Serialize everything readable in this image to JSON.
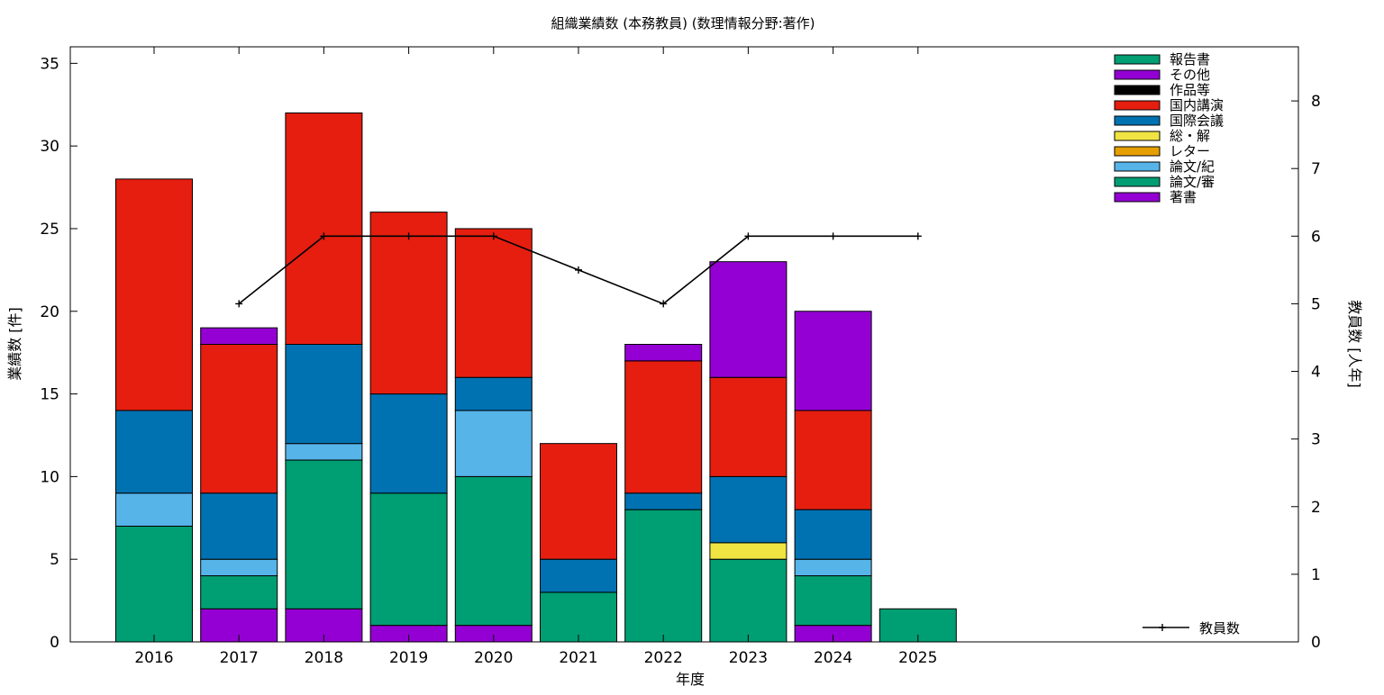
{
  "chart_data": {
    "type": "bar",
    "stacked": true,
    "title": "組織業績数 (本務教員) (数理情報分野:著作)",
    "xlabel": "年度",
    "ylabel": "業績数 [件]",
    "y2label": "教員数 [人年]",
    "categories": [
      "2016",
      "2017",
      "2018",
      "2019",
      "2020",
      "2021",
      "2022",
      "2023",
      "2024",
      "2025"
    ],
    "ylim": [
      0,
      36
    ],
    "y2lim": [
      0,
      8.8
    ],
    "yticks": [
      0,
      5,
      10,
      15,
      20,
      25,
      30,
      35
    ],
    "y2ticks": [
      0,
      1,
      2,
      3,
      4,
      5,
      6,
      7,
      8
    ],
    "grid": false,
    "legend_position": "top-right",
    "series": [
      {
        "name": "著書",
        "color": "#9400d3",
        "values": [
          0,
          2,
          2,
          1,
          1,
          0,
          0,
          0,
          1,
          0
        ]
      },
      {
        "name": "論文/審",
        "color": "#009e73",
        "values": [
          7,
          2,
          9,
          8,
          9,
          3,
          8,
          5,
          3,
          2
        ]
      },
      {
        "name": "論文/紀",
        "color": "#56b4e9",
        "values": [
          2,
          1,
          1,
          0,
          4,
          0,
          0,
          0,
          1,
          0
        ]
      },
      {
        "name": "レター",
        "color": "#e69f00",
        "values": [
          0,
          0,
          0,
          0,
          0,
          0,
          0,
          0,
          0,
          0
        ]
      },
      {
        "name": "総・解",
        "color": "#f0e442",
        "values": [
          0,
          0,
          0,
          0,
          0,
          0,
          0,
          1,
          0,
          0
        ]
      },
      {
        "name": "国際会議",
        "color": "#0072b2",
        "values": [
          5,
          4,
          6,
          6,
          2,
          2,
          1,
          4,
          3,
          0
        ]
      },
      {
        "name": "国内講演",
        "color": "#e51e10",
        "values": [
          14,
          9,
          14,
          11,
          9,
          7,
          8,
          6,
          6,
          0
        ]
      },
      {
        "name": "作品等",
        "color": "#000000",
        "values": [
          0,
          0,
          0,
          0,
          0,
          0,
          0,
          0,
          0,
          0
        ]
      },
      {
        "name": "その他",
        "color": "#9400d3",
        "values": [
          0,
          1,
          0,
          0,
          0,
          0,
          1,
          7,
          6,
          0
        ]
      },
      {
        "name": "報告書",
        "color": "#009e73",
        "values": [
          0,
          0,
          0,
          0,
          0,
          0,
          0,
          0,
          0,
          0
        ]
      }
    ],
    "line_series": {
      "name": "教員数",
      "color": "#000000",
      "axis": "y2",
      "values": [
        null,
        5,
        6,
        6,
        6,
        5.5,
        5,
        6,
        6,
        6
      ]
    }
  }
}
